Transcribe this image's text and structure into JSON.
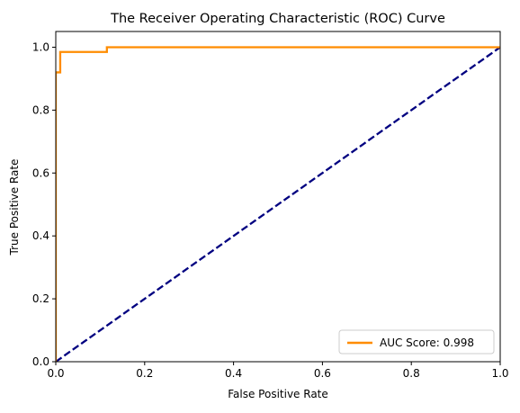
{
  "chart_data": {
    "type": "line",
    "title": "The Receiver Operating Characteristic (ROC) Curve",
    "xlabel": "False Positive Rate",
    "ylabel": "True Positive Rate",
    "xlim": [
      0.0,
      1.0
    ],
    "ylim": [
      0.0,
      1.05
    ],
    "xticks": [
      0.0,
      0.2,
      0.4,
      0.6,
      0.8,
      1.0
    ],
    "yticks": [
      0.0,
      0.2,
      0.4,
      0.6,
      0.8,
      1.0
    ],
    "xtick_labels": [
      "0.0",
      "0.2",
      "0.4",
      "0.6",
      "0.8",
      "1.0"
    ],
    "ytick_labels": [
      "0.0",
      "0.2",
      "0.4",
      "0.6",
      "0.8",
      "1.0"
    ],
    "grid": false,
    "legend_position": "lower-right",
    "series": [
      {
        "name": "AUC Score: 0.998",
        "color": "#ff8c00",
        "style": "solid",
        "x": [
          0.0,
          0.0,
          0.01,
          0.01,
          0.115,
          0.115,
          1.0
        ],
        "y": [
          0.0,
          0.92,
          0.92,
          0.985,
          0.985,
          1.0,
          1.0
        ]
      },
      {
        "name": "",
        "color": "#000080",
        "style": "dashed",
        "x": [
          0.0,
          1.0
        ],
        "y": [
          0.0,
          1.0
        ]
      }
    ]
  }
}
